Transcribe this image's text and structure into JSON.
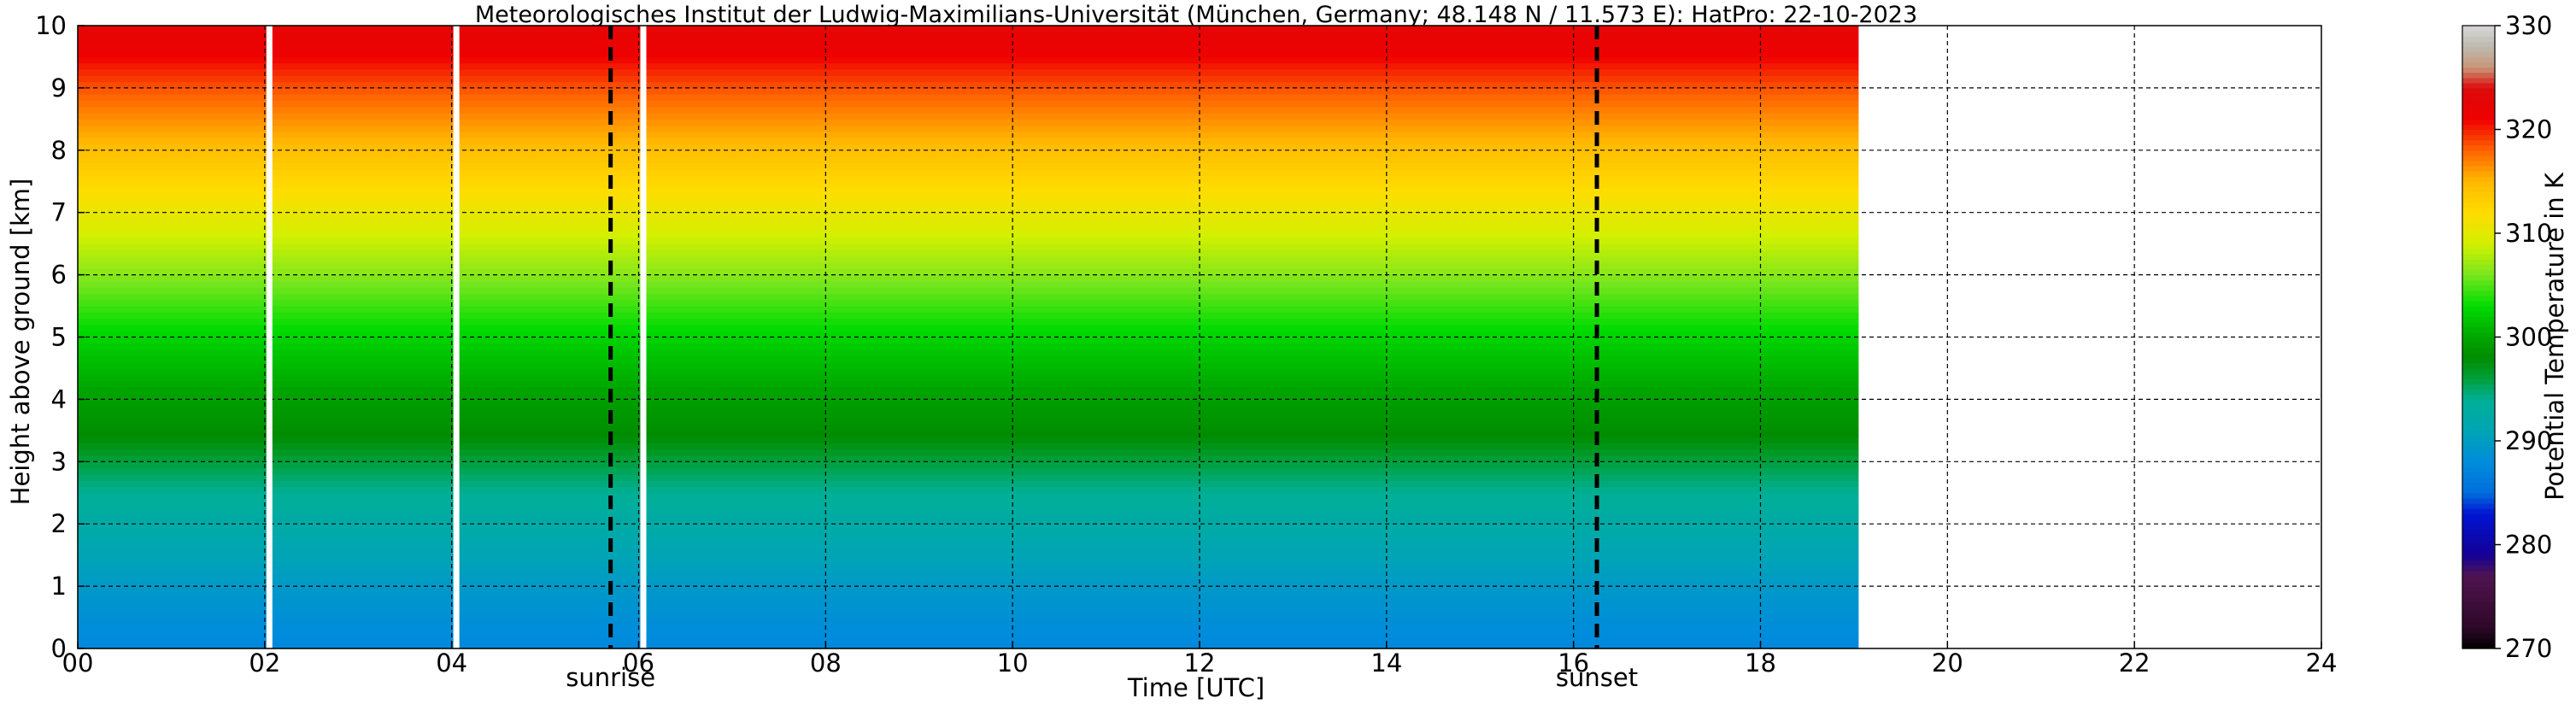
{
  "chart_data": {
    "type": "heatmap",
    "title": "Meteorologisches Institut der Ludwig-Maximilians-Universität (München, Germany; 48.148 N / 11.573 E):    HatPro: 22-10-2023",
    "xlabel": "Time [UTC]",
    "ylabel": "Height above ground [km]",
    "xlim": [
      0,
      24
    ],
    "ylim": [
      0,
      10
    ],
    "x_ticks": [
      "00",
      "02",
      "04",
      "06",
      "08",
      "10",
      "12",
      "14",
      "16",
      "18",
      "20",
      "22",
      "24"
    ],
    "y_ticks": [
      "0",
      "1",
      "2",
      "3",
      "4",
      "5",
      "6",
      "7",
      "8",
      "9",
      "10"
    ],
    "grid": true,
    "data_end_hour": 19.05,
    "gaps_hours": [
      2.05,
      4.05,
      6.05
    ],
    "annotations": [
      {
        "label": "sunrise",
        "hour": 5.7
      },
      {
        "label": "sunset",
        "hour": 16.25
      }
    ],
    "colorbar": {
      "label": "Potential Temperature in K",
      "ticks": [
        "270",
        "280",
        "290",
        "300",
        "310",
        "320",
        "330"
      ],
      "range": [
        270,
        330
      ]
    },
    "profile": {
      "heights_km": [
        0,
        0.5,
        1.0,
        1.5,
        2.0,
        2.5,
        3.0,
        3.3,
        3.6,
        4.0,
        4.5,
        5.0,
        5.5,
        6.0,
        6.5,
        7.0,
        7.5,
        8.0,
        8.5,
        9.0,
        9.3,
        9.6,
        10.0
      ],
      "theta_K": [
        287.5,
        288.5,
        289.5,
        291.0,
        292.5,
        294.0,
        296.0,
        297.5,
        298.5,
        299.5,
        301.0,
        302.5,
        304.5,
        306.5,
        308.5,
        310.5,
        312.5,
        314.5,
        316.5,
        318.5,
        320.0,
        321.5,
        322.5
      ]
    }
  }
}
